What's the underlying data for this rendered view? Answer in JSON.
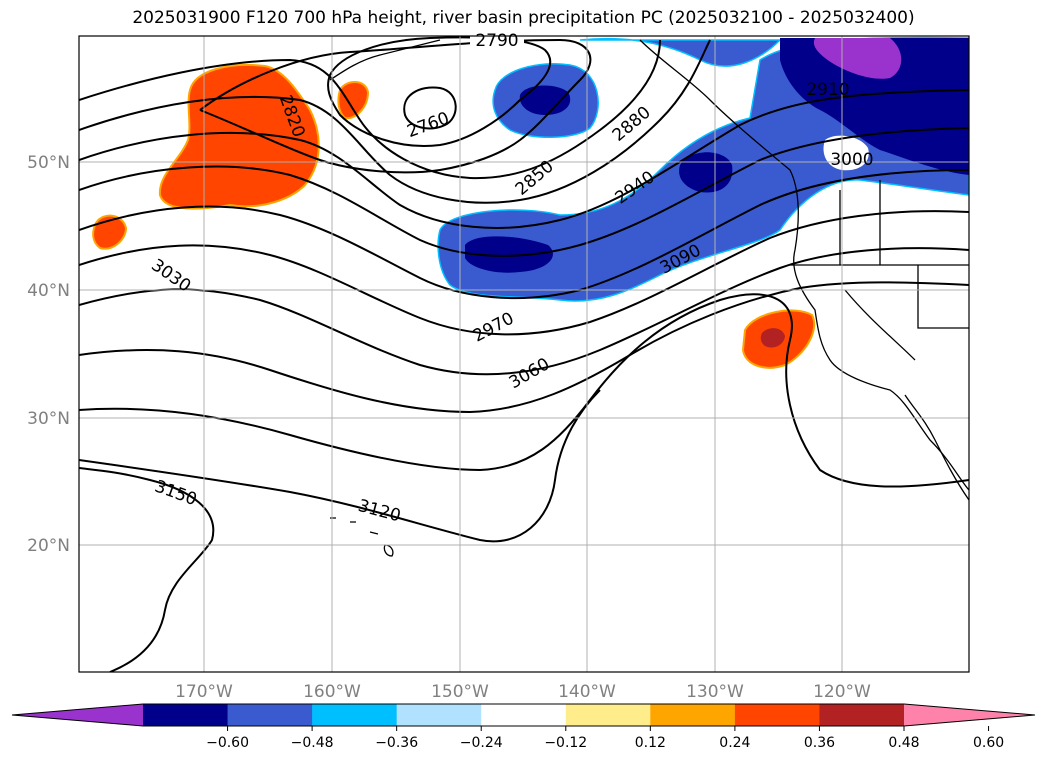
{
  "title": "2025031900 F120 700 hPa height, river basin precipitation PC (2025032100 - 2025032400)",
  "map": {
    "lat_ticks": [
      "50°N",
      "40°N",
      "30°N",
      "20°N"
    ],
    "lon_ticks": [
      "170°W",
      "160°W",
      "150°W",
      "140°W",
      "130°W",
      "120°W"
    ],
    "contour_labels": [
      "2790",
      "2760",
      "2820",
      "2880",
      "2910",
      "2850",
      "3000",
      "2940",
      "3030",
      "3090",
      "2970",
      "3060",
      "3150",
      "3120"
    ]
  },
  "colorbar": {
    "colors": [
      "#9a32cd",
      "#00008b",
      "#3a5bd0",
      "#00bfff",
      "#b0e2ff",
      "#ffffff",
      "#ffec8b",
      "#ffa500",
      "#ff4500",
      "#b22222",
      "#ff82ab"
    ],
    "tick_labels": [
      "−0.60",
      "−0.48",
      "−0.36",
      "−0.24",
      "−0.12",
      "0.12",
      "0.24",
      "0.36",
      "0.48",
      "0.60"
    ]
  }
}
